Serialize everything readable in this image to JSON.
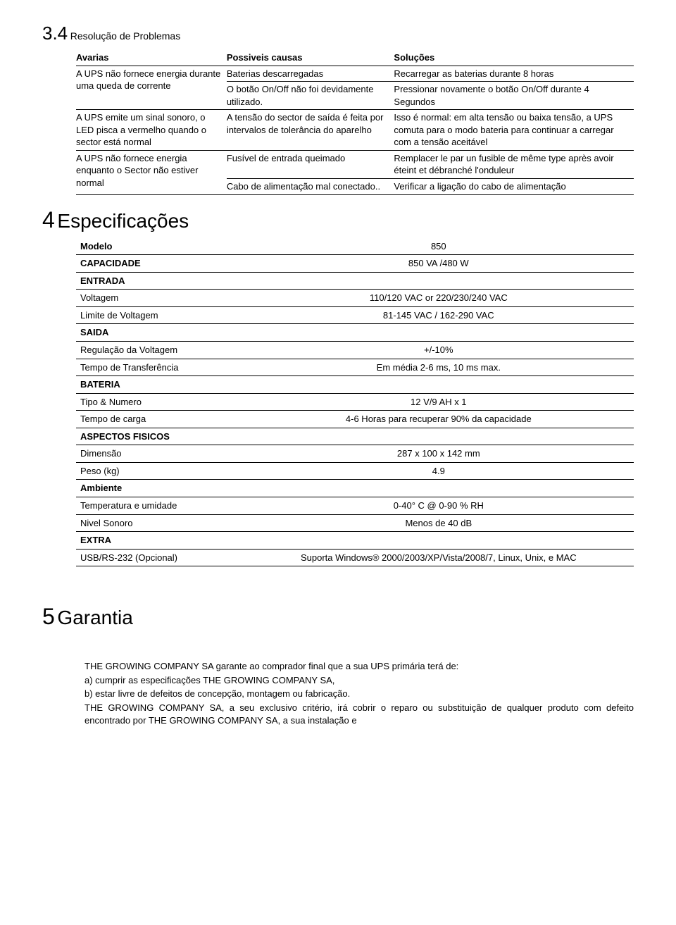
{
  "colors": {
    "text": "#000000",
    "bg": "#ffffff",
    "rule": "#000000"
  },
  "fonts": {
    "body_family": "Century Gothic",
    "body_size_pt": 10,
    "section_num_pt": 24,
    "section_title_pt": 22
  },
  "section34": {
    "num": "3.4",
    "title": "Resolução de Problemas",
    "headers": [
      "Avarias",
      "Possiveis causas",
      "Soluções"
    ],
    "blocks": [
      {
        "avaria": "A UPS não fornece energia durante uma queda de corrente",
        "rows": [
          {
            "causa": "Baterias descarregadas",
            "solucao": "Recarregar as baterias durante 8 horas"
          },
          {
            "causa": "O botão On/Off não foi devidamente utilizado.",
            "solucao": "Pressionar novamente o botão On/Off durante 4 Segundos"
          }
        ]
      },
      {
        "avaria": "A UPS emite um sinal sonoro, o LED pisca a vermelho quando o sector está normal",
        "rows": [
          {
            "causa": "A tensão do sector de saída é feita por intervalos de tolerância do aparelho",
            "solucao": "Isso é normal: em alta tensão ou baixa tensão, a UPS comuta para o modo bateria para continuar a carregar com a tensão aceitável"
          }
        ]
      },
      {
        "avaria": "A UPS não fornece energia enquanto o Sector não estiver normal",
        "rows": [
          {
            "causa": "Fusível de entrada queimado",
            "solucao": "Remplacer le par un fusible de même type après avoir éteint et débranché l'onduleur"
          },
          {
            "causa": "Cabo de alimentação mal conectado..",
            "solucao": "Verificar a ligação do cabo de alimentação"
          }
        ]
      }
    ]
  },
  "section4": {
    "num": "4",
    "title": "Especificações",
    "rows": [
      {
        "label": "Modelo",
        "value": "850",
        "bold": true
      },
      {
        "label": "CAPACIDADE",
        "value": "850 VA /480 W",
        "bold": true
      },
      {
        "label": "ENTRADA",
        "value": "",
        "bold": true,
        "section": true
      },
      {
        "label": "Voltagem",
        "value": "110/120 VAC or 220/230/240 VAC"
      },
      {
        "label": "Limite de Voltagem",
        "value": "81-145 VAC / 162-290 VAC"
      },
      {
        "label": "SAIDA",
        "value": "",
        "bold": true,
        "section": true
      },
      {
        "label": "Regulação da Voltagem",
        "value": "+/-10%"
      },
      {
        "label": "Tempo de Transferência",
        "value": "Em média 2-6 ms, 10 ms max."
      },
      {
        "label": "BATERIA",
        "value": "",
        "bold": true,
        "section": true
      },
      {
        "label": "Tipo & Numero",
        "value": "12 V/9 AH x 1"
      },
      {
        "label": "Tempo de carga",
        "value": "4-6 Horas para recuperar 90% da capacidade"
      },
      {
        "label": "ASPECTOS FISICOS",
        "value": "",
        "bold": true,
        "section": true
      },
      {
        "label": "Dimensão",
        "value": "287 x 100 x 142 mm"
      },
      {
        "label": "Peso (kg)",
        "value": "4.9"
      },
      {
        "label": "Ambiente",
        "value": "",
        "bold": true,
        "section": true
      },
      {
        "label": "Temperatura e umidade",
        "value": "0-40° C @ 0-90 % RH"
      },
      {
        "label": "Nivel Sonoro",
        "value": "Menos de 40 dB"
      },
      {
        "label": "EXTRA",
        "value": "",
        "bold": true,
        "section": true
      },
      {
        "label": "USB/RS-232 (Opcional)",
        "value": "Suporta Windows® 2000/2003/XP/Vista/2008/7, Linux, Unix, e MAC"
      }
    ]
  },
  "section5": {
    "num": "5",
    "title": "Garantia",
    "paras": [
      "THE GROWING COMPANY SA garante ao comprador final que a sua UPS primária terá de:",
      "a) cumprir as especificações THE GROWING COMPANY SA,",
      "b) estar livre de defeitos de concepção, montagem ou fabricação.",
      "THE GROWING COMPANY SA, a seu exclusivo critério, irá cobrir o reparo ou substituição de qualquer produto com defeito encontrado por THE GROWING COMPANY SA, a sua instalação e"
    ]
  }
}
